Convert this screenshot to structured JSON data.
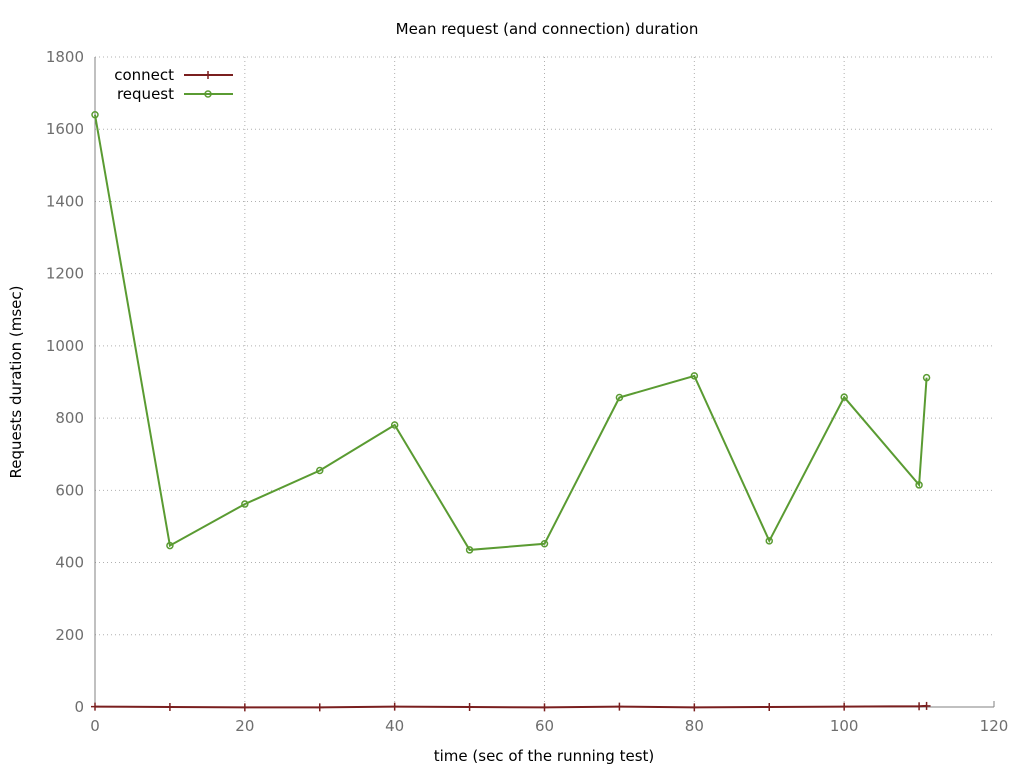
{
  "chart_data": {
    "type": "line",
    "title": "Mean request (and connection) duration",
    "xlabel": "time (sec of the running test)",
    "ylabel": "Requests duration (msec)",
    "xlim": [
      0,
      120
    ],
    "ylim": [
      0,
      1800
    ],
    "xticks": [
      0,
      20,
      40,
      60,
      80,
      100,
      120
    ],
    "yticks": [
      0,
      200,
      400,
      600,
      800,
      1000,
      1200,
      1400,
      1600,
      1800
    ],
    "grid": true,
    "legend_position": "top-left",
    "series": [
      {
        "name": "connect",
        "color": "#7a1f1f",
        "marker": "plus",
        "x": [
          0,
          10,
          20,
          30,
          40,
          50,
          60,
          70,
          80,
          90,
          100,
          110,
          111
        ],
        "y": [
          1,
          0,
          -1,
          -1,
          1,
          0,
          -1,
          1,
          -1,
          0,
          1,
          2,
          3
        ]
      },
      {
        "name": "request",
        "color": "#5a9b32",
        "marker": "circle",
        "x": [
          0,
          10,
          20,
          30,
          40,
          50,
          60,
          70,
          80,
          90,
          100,
          110,
          111
        ],
        "y": [
          1640,
          447,
          562,
          655,
          781,
          435,
          452,
          857,
          917,
          460,
          858,
          615,
          912
        ]
      }
    ]
  }
}
